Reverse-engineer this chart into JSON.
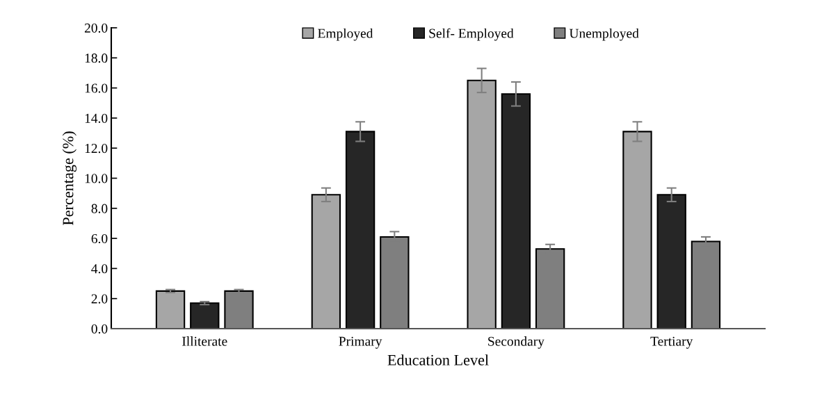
{
  "chart_data": {
    "type": "bar",
    "xlabel": "Education Level",
    "ylabel": "Percentage (%)",
    "categories": [
      "Illiterate",
      "Primary",
      "Secondary",
      "Tertiary"
    ],
    "series": [
      {
        "name": "Employed",
        "color": "#a6a6a6",
        "values": [
          2.5,
          8.9,
          16.5,
          13.1
        ],
        "errors": [
          0.1,
          0.45,
          0.8,
          0.65
        ]
      },
      {
        "name": "Self- Employed",
        "color": "#262626",
        "values": [
          1.7,
          13.1,
          15.6,
          8.9
        ],
        "errors": [
          0.1,
          0.65,
          0.8,
          0.45
        ]
      },
      {
        "name": "Unemployed",
        "color": "#7f7f7f",
        "values": [
          2.5,
          6.1,
          5.3,
          5.8
        ],
        "errors": [
          0.1,
          0.35,
          0.3,
          0.3
        ]
      }
    ],
    "ylim": [
      0,
      20
    ],
    "yticks": [
      {
        "value": 0,
        "label": "0.0"
      },
      {
        "value": 2,
        "label": "2.0"
      },
      {
        "value": 4,
        "label": "4.0"
      },
      {
        "value": 6,
        "label": "6.0"
      },
      {
        "value": 8,
        "label": "8.0"
      },
      {
        "value": 10,
        "label": "10.0"
      },
      {
        "value": 12,
        "label": "12.0"
      },
      {
        "value": 14,
        "label": "14.0"
      },
      {
        "value": 16,
        "label": "16.0"
      },
      {
        "value": 18,
        "label": "18.0"
      },
      {
        "value": 20,
        "label": "20.0"
      }
    ],
    "grid": false,
    "legend": "top"
  }
}
